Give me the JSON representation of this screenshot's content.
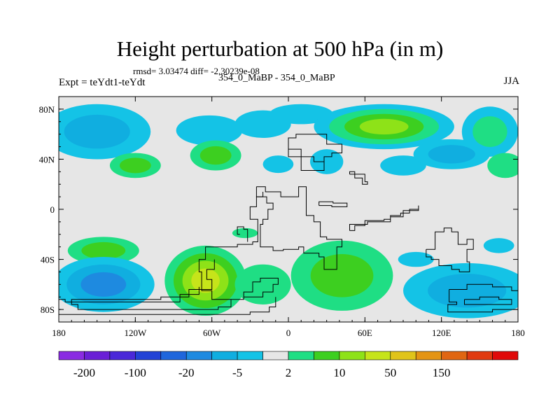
{
  "chart_data": {
    "type": "heatmap",
    "title": "Height perturbation at 500 hPa (in m)",
    "stats_line": "rmsd= 3.03474 diff= -2.30239e-08",
    "subtitle": "354_0_MaBP - 354_0_MaBP",
    "left_label": "Expt = teYdt1-teYdt",
    "right_label": "JJA",
    "xlim": [
      -180,
      180
    ],
    "ylim": [
      -90,
      90
    ],
    "x_ticks": [
      {
        "value": -180,
        "label": "180"
      },
      {
        "value": -120,
        "label": "120W"
      },
      {
        "value": -60,
        "label": "60W"
      },
      {
        "value": 0,
        "label": "0"
      },
      {
        "value": 60,
        "label": "60E"
      },
      {
        "value": 120,
        "label": "120E"
      },
      {
        "value": 180,
        "label": "180"
      }
    ],
    "y_ticks": [
      {
        "value": 80,
        "label": "80N"
      },
      {
        "value": 40,
        "label": "40N"
      },
      {
        "value": 0,
        "label": "0"
      },
      {
        "value": -40,
        "label": "40S"
      },
      {
        "value": -80,
        "label": "80S"
      }
    ],
    "colorbar": {
      "colors": [
        "#8a2be2",
        "#6a1fd6",
        "#4a28d8",
        "#2242d6",
        "#1f66dc",
        "#1e8ae0",
        "#10aee0",
        "#14c3e6",
        "#e6e6e6",
        "#1fde84",
        "#3dcf20",
        "#8ee218",
        "#c6e41a",
        "#e0c41a",
        "#e49414",
        "#e06612",
        "#e03a10",
        "#e00a0a"
      ],
      "labels": [
        {
          "index": 1,
          "text": "-200"
        },
        {
          "index": 3,
          "text": "-100"
        },
        {
          "index": 5,
          "text": "-20"
        },
        {
          "index": 7,
          "text": "-5"
        },
        {
          "index": 9,
          "text": "2"
        },
        {
          "index": 11,
          "text": "10"
        },
        {
          "index": 13,
          "text": "50"
        },
        {
          "index": 15,
          "text": "150"
        }
      ]
    },
    "background_color": "#e6e6e6",
    "blobs": [
      {
        "lon": -150,
        "lat": 62,
        "rx": 42,
        "ry": 22,
        "levels": [
          "#14c3e6",
          "#10aee0"
        ]
      },
      {
        "lon": -62,
        "lat": 63,
        "rx": 26,
        "ry": 12,
        "levels": [
          "#14c3e6"
        ]
      },
      {
        "lon": -20,
        "lat": 68,
        "rx": 22,
        "ry": 11,
        "levels": [
          "#14c3e6"
        ]
      },
      {
        "lon": 10,
        "lat": 76,
        "rx": 25,
        "ry": 8,
        "levels": [
          "#14c3e6"
        ]
      },
      {
        "lon": 75,
        "lat": 66,
        "rx": 55,
        "ry": 18,
        "levels": [
          "#14c3e6",
          "#1fde84",
          "#3dcf20",
          "#8ee218"
        ]
      },
      {
        "lon": 158,
        "lat": 62,
        "rx": 22,
        "ry": 20,
        "levels": [
          "#14c3e6",
          "#1fde84"
        ]
      },
      {
        "lon": -120,
        "lat": 35,
        "rx": 20,
        "ry": 10,
        "levels": [
          "#1fde84",
          "#3dcf20"
        ]
      },
      {
        "lon": -57,
        "lat": 43,
        "rx": 20,
        "ry": 12,
        "levels": [
          "#1fde84",
          "#3dcf20"
        ]
      },
      {
        "lon": -8,
        "lat": 36,
        "rx": 12,
        "ry": 7,
        "levels": [
          "#14c3e6"
        ]
      },
      {
        "lon": 30,
        "lat": 38,
        "rx": 13,
        "ry": 10,
        "levels": [
          "#14c3e6"
        ]
      },
      {
        "lon": 90,
        "lat": 35,
        "rx": 18,
        "ry": 8,
        "levels": [
          "#14c3e6"
        ]
      },
      {
        "lon": 128,
        "lat": 44,
        "rx": 30,
        "ry": 12,
        "levels": [
          "#14c3e6",
          "#10aee0"
        ]
      },
      {
        "lon": 170,
        "lat": 35,
        "rx": 14,
        "ry": 10,
        "levels": [
          "#1fde84"
        ]
      },
      {
        "lon": -145,
        "lat": -33,
        "rx": 28,
        "ry": 11,
        "levels": [
          "#1fde84",
          "#3dcf20"
        ]
      },
      {
        "lon": -145,
        "lat": -60,
        "rx": 40,
        "ry": 22,
        "levels": [
          "#14c3e6",
          "#10aee0",
          "#1e8ae0"
        ]
      },
      {
        "lon": -65,
        "lat": -57,
        "rx": 32,
        "ry": 28,
        "levels": [
          "#1fde84",
          "#3dcf20",
          "#8ee218",
          "#c6e41a"
        ]
      },
      {
        "lon": -20,
        "lat": -60,
        "rx": 22,
        "ry": 16,
        "levels": [
          "#1fde84"
        ]
      },
      {
        "lon": -34,
        "lat": -19,
        "rx": 10,
        "ry": 4,
        "levels": [
          "#1fde84"
        ]
      },
      {
        "lon": 42,
        "lat": -53,
        "rx": 40,
        "ry": 28,
        "levels": [
          "#1fde84",
          "#3dcf20"
        ]
      },
      {
        "lon": 100,
        "lat": -40,
        "rx": 14,
        "ry": 6,
        "levels": [
          "#14c3e6"
        ]
      },
      {
        "lon": 140,
        "lat": -65,
        "rx": 50,
        "ry": 22,
        "levels": [
          "#14c3e6",
          "#10aee0"
        ]
      },
      {
        "lon": 165,
        "lat": -29,
        "rx": 12,
        "ry": 6,
        "levels": [
          "#14c3e6"
        ]
      }
    ],
    "coastlines": [
      [
        [
          0,
          57
        ],
        [
          0,
          48
        ],
        [
          10,
          48
        ],
        [
          10,
          42
        ],
        [
          20,
          42
        ],
        [
          20,
          38
        ],
        [
          28,
          38
        ],
        [
          28,
          31
        ],
        [
          18,
          31
        ],
        [
          10,
          33
        ],
        [
          10,
          42
        ],
        [
          0,
          44
        ],
        [
          0,
          57
        ],
        [
          6,
          60
        ],
        [
          18,
          60
        ],
        [
          30,
          52
        ],
        [
          40,
          52
        ],
        [
          42,
          45
        ],
        [
          34,
          42
        ],
        [
          28,
          35
        ]
      ],
      [
        [
          -25,
          18
        ],
        [
          -25,
          10
        ],
        [
          -17,
          10
        ],
        [
          -17,
          5
        ],
        [
          -12,
          0
        ],
        [
          -16,
          -8
        ],
        [
          -20,
          -12
        ],
        [
          -22,
          -30
        ],
        [
          -12,
          -33
        ],
        [
          -4,
          -32
        ],
        [
          8,
          -30
        ],
        [
          12,
          -35
        ],
        [
          24,
          -38
        ],
        [
          28,
          -48
        ],
        [
          38,
          -48
        ],
        [
          38,
          -30
        ],
        [
          42,
          -24
        ],
        [
          30,
          -22
        ],
        [
          25,
          -10
        ],
        [
          20,
          -5
        ],
        [
          14,
          10
        ],
        [
          14,
          18
        ],
        [
          8,
          18
        ],
        [
          8,
          10
        ],
        [
          0,
          10
        ],
        [
          -6,
          14
        ],
        [
          -14,
          14
        ],
        [
          -18,
          18
        ],
        [
          -25,
          18
        ]
      ],
      [
        [
          -38,
          -20
        ],
        [
          -40,
          -14
        ],
        [
          -35,
          -16
        ],
        [
          -32,
          -26
        ]
      ],
      [
        [
          -58,
          -30
        ],
        [
          -40,
          -28
        ],
        [
          -28,
          -26
        ],
        [
          -24,
          -20
        ],
        [
          -24,
          -8
        ],
        [
          -30,
          -4
        ],
        [
          -30,
          2
        ],
        [
          -25,
          5
        ],
        [
          -25,
          10
        ],
        [
          -20,
          14
        ]
      ],
      [
        [
          -58,
          -30
        ],
        [
          -65,
          -40
        ],
        [
          -70,
          -50
        ],
        [
          -68,
          -65
        ],
        [
          -60,
          -72
        ],
        [
          -46,
          -72
        ],
        [
          -35,
          -66
        ],
        [
          -28,
          -58
        ],
        [
          -22,
          -55
        ],
        [
          -15,
          -55
        ],
        [
          -8,
          -60
        ],
        [
          -12,
          -66
        ],
        [
          -20,
          -70
        ],
        [
          -35,
          -72
        ],
        [
          -45,
          -78
        ],
        [
          -55,
          -80
        ],
        [
          -145,
          -80
        ],
        [
          -165,
          -76
        ],
        [
          -170,
          -72
        ],
        [
          -140,
          -72
        ],
        [
          -100,
          -70
        ],
        [
          -78,
          -64
        ],
        [
          -60,
          -56
        ],
        [
          -64,
          -48
        ],
        [
          -58,
          -40
        ]
      ],
      [
        [
          -180,
          -72
        ],
        [
          -175,
          -74
        ],
        [
          -120,
          -74
        ],
        [
          -85,
          -68
        ],
        [
          -70,
          -62
        ]
      ],
      [
        [
          -180,
          -84
        ],
        [
          -150,
          -84
        ],
        [
          -70,
          -84
        ],
        [
          -30,
          -82
        ],
        [
          -15,
          -78
        ],
        [
          -10,
          -70
        ]
      ],
      [
        [
          48,
          28
        ],
        [
          52,
          25
        ],
        [
          58,
          20
        ],
        [
          62,
          22
        ],
        [
          60,
          28
        ],
        [
          52,
          30
        ],
        [
          48,
          28
        ]
      ],
      [
        [
          24,
          3
        ],
        [
          34,
          2
        ],
        [
          45,
          2
        ],
        [
          46,
          5
        ],
        [
          35,
          6
        ],
        [
          24,
          3
        ]
      ],
      [
        [
          48,
          -17
        ],
        [
          52,
          -13
        ],
        [
          60,
          -9
        ],
        [
          75,
          -8
        ],
        [
          80,
          -5
        ],
        [
          88,
          -3
        ],
        [
          95,
          0
        ],
        [
          102,
          3
        ],
        [
          102,
          -1
        ],
        [
          90,
          -6
        ],
        [
          80,
          -10
        ],
        [
          62,
          -12
        ],
        [
          48,
          -17
        ]
      ],
      [
        [
          108,
          -32
        ],
        [
          115,
          -18
        ],
        [
          122,
          -15
        ],
        [
          128,
          -18
        ],
        [
          133,
          -28
        ],
        [
          140,
          -24
        ],
        [
          145,
          -32
        ],
        [
          140,
          -42
        ],
        [
          142,
          -50
        ],
        [
          134,
          -48
        ],
        [
          128,
          -45
        ],
        [
          118,
          -40
        ],
        [
          112,
          -38
        ],
        [
          108,
          -32
        ]
      ],
      [
        [
          126,
          -64
        ],
        [
          140,
          -60
        ],
        [
          160,
          -62
        ],
        [
          175,
          -65
        ],
        [
          180,
          -68
        ],
        [
          180,
          -80
        ],
        [
          160,
          -82
        ],
        [
          130,
          -82
        ],
        [
          125,
          -76
        ],
        [
          132,
          -74
        ],
        [
          126,
          -70
        ],
        [
          126,
          -64
        ]
      ],
      [
        [
          138,
          -72
        ],
        [
          150,
          -70
        ],
        [
          165,
          -72
        ],
        [
          175,
          -76
        ],
        [
          160,
          -76
        ],
        [
          145,
          -76
        ],
        [
          138,
          -72
        ]
      ]
    ]
  }
}
